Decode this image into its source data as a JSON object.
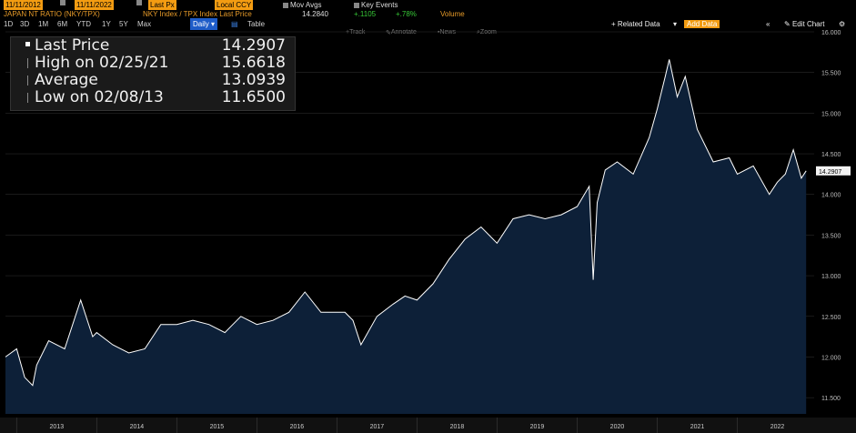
{
  "toolbar": {
    "start_date": "11/11/2012",
    "end_date": "11/11/2022",
    "price_field": "Last Px",
    "currency": "Local CCY",
    "mov_avgs": "Mov Avgs",
    "key_events": "Key Events",
    "security_title": "JAPAN NT RATIO (NKY/TPX)",
    "expression": "NKY Index / TPX Index Last Price",
    "last_value": "14.2840",
    "change": "+.1105",
    "change_pct": "+.78%",
    "volume": "Volume",
    "periods": [
      "1D",
      "3D",
      "1M",
      "6M",
      "YTD",
      "1Y",
      "5Y",
      "Max"
    ],
    "frequency": "Daily",
    "table_label": "Table",
    "related_data": "+ Related Data",
    "add_data": "Add Data",
    "edit_chart": "Edit Chart",
    "track": "Track",
    "annotate": "Annotate",
    "news": "News",
    "zoom": "Zoom"
  },
  "legend": {
    "last_price_label": "Last Price",
    "last_price_value": "14.2907",
    "high_label": "High on 02/25/21",
    "high_value": "15.6618",
    "average_label": "Average",
    "average_value": "13.0939",
    "low_label": "Low on 02/08/13",
    "low_value": "11.6500"
  },
  "chart_data": {
    "type": "area",
    "title": "JAPAN NT RATIO (NKY/TPX)",
    "ylim": [
      11.3,
      16.0
    ],
    "yticks": [
      "11.500",
      "12.000",
      "12.500",
      "13.000",
      "13.500",
      "14.000",
      "14.500",
      "15.000",
      "15.500",
      "16.000"
    ],
    "xticks": [
      "2013",
      "2014",
      "2015",
      "2016",
      "2017",
      "2018",
      "2019",
      "2020",
      "2021",
      "2022"
    ],
    "last_price_tag": "14.2907",
    "colors": {
      "fill": "#0d2038",
      "line": "#ffffff",
      "background": "#000000",
      "grid": "#333333"
    },
    "series": [
      {
        "x": [
          2012.86,
          2013.0,
          2013.1,
          2013.2,
          2013.25,
          2013.4,
          2013.6,
          2013.8,
          2013.95,
          2014.0,
          2014.2,
          2014.4,
          2014.6,
          2014.8,
          2015.0,
          2015.2,
          2015.4,
          2015.6,
          2015.8,
          2016.0,
          2016.2,
          2016.4,
          2016.6,
          2016.8,
          2016.95,
          2017.1,
          2017.2,
          2017.3,
          2017.5,
          2017.7,
          2017.85,
          2018.0,
          2018.2,
          2018.4,
          2018.6,
          2018.8,
          2019.0,
          2019.2,
          2019.4,
          2019.6,
          2019.8,
          2020.0,
          2020.15,
          2020.2,
          2020.25,
          2020.35,
          2020.5,
          2020.7,
          2020.9,
          2021.0,
          2021.1,
          2021.15,
          2021.25,
          2021.35,
          2021.5,
          2021.7,
          2021.9,
          2022.0,
          2022.2,
          2022.4,
          2022.5,
          2022.6,
          2022.7,
          2022.8,
          2022.86
        ],
        "y": [
          12.0,
          12.1,
          11.75,
          11.65,
          11.9,
          12.2,
          12.1,
          12.7,
          12.25,
          12.3,
          12.15,
          12.05,
          12.1,
          12.4,
          12.4,
          12.45,
          12.4,
          12.3,
          12.5,
          12.4,
          12.45,
          12.55,
          12.8,
          12.55,
          12.55,
          12.55,
          12.45,
          12.15,
          12.5,
          12.65,
          12.75,
          12.7,
          12.9,
          13.2,
          13.45,
          13.6,
          13.4,
          13.7,
          13.75,
          13.7,
          13.75,
          13.85,
          14.1,
          12.95,
          13.9,
          14.3,
          14.4,
          14.25,
          14.7,
          15.05,
          15.45,
          15.66,
          15.2,
          15.45,
          14.8,
          14.4,
          14.45,
          14.25,
          14.35,
          14.0,
          14.15,
          14.25,
          14.55,
          14.2,
          14.29
        ]
      }
    ]
  }
}
